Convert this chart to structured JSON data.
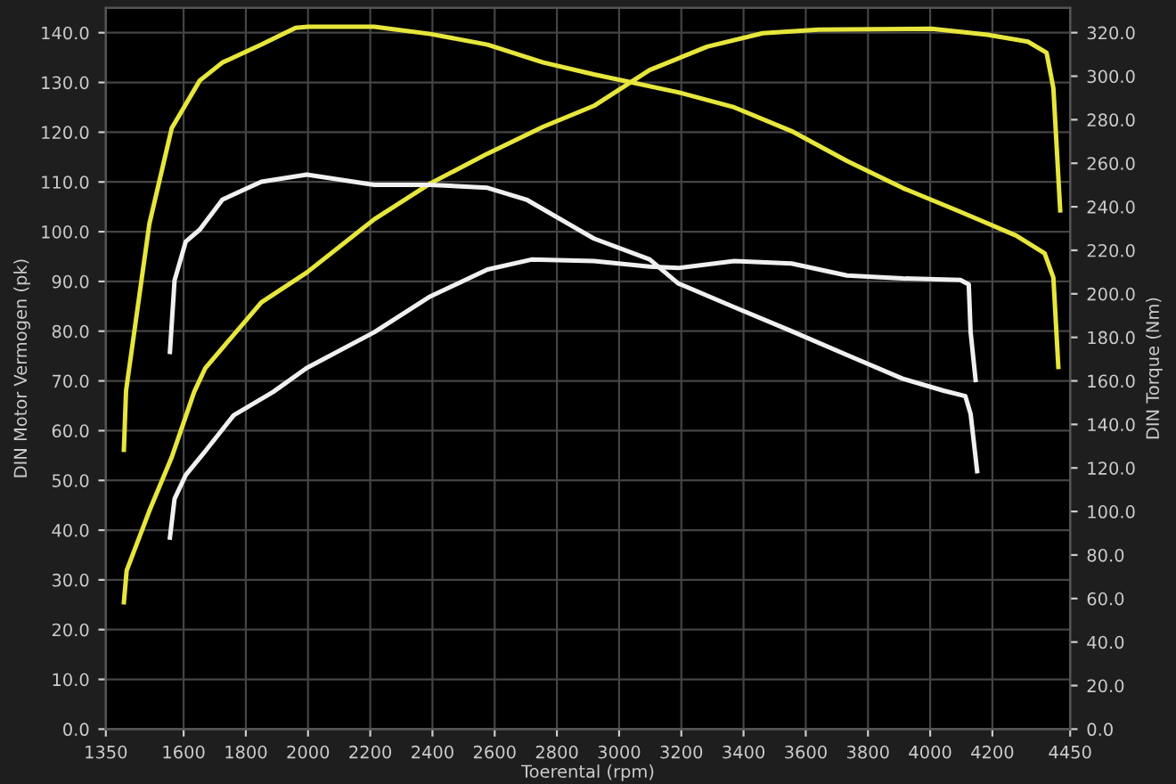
{
  "chart_data": {
    "type": "line",
    "xlabel": "Toerental (rpm)",
    "ylabel": "DIN Motor Vermogen (pk)",
    "y2label": "DIN Torque (Nm)",
    "xlim": [
      1350,
      4450
    ],
    "xticks": [
      1350,
      1600,
      1800,
      2000,
      2200,
      2400,
      2600,
      2800,
      3000,
      3200,
      3400,
      3600,
      3800,
      4000,
      4200,
      4450
    ],
    "ylim": [
      0,
      145
    ],
    "yticks": [
      {
        "value": 0,
        "label": "0.0"
      },
      {
        "value": 10,
        "label": "10.0"
      },
      {
        "value": 20,
        "label": "20.0"
      },
      {
        "value": 30,
        "label": "30.0"
      },
      {
        "value": 40,
        "label": "40.0"
      },
      {
        "value": 50,
        "label": "50.0"
      },
      {
        "value": 60,
        "label": "60.0"
      },
      {
        "value": 70,
        "label": "70.0"
      },
      {
        "value": 80,
        "label": "80.0"
      },
      {
        "value": 90,
        "label": "90.0"
      },
      {
        "value": 100,
        "label": "100.0"
      },
      {
        "value": 110,
        "label": "110.0"
      },
      {
        "value": 120,
        "label": "120.0"
      },
      {
        "value": 130,
        "label": "130.0"
      },
      {
        "value": 140,
        "label": "140.0"
      }
    ],
    "y2lim": [
      0,
      331.4
    ],
    "y2ticks": [
      {
        "value": 0,
        "label": "0.0"
      },
      {
        "value": 20,
        "label": "20.0"
      },
      {
        "value": 40,
        "label": "40.0"
      },
      {
        "value": 60,
        "label": "60.0"
      },
      {
        "value": 80,
        "label": "80.0"
      },
      {
        "value": 100,
        "label": "100.0"
      },
      {
        "value": 120,
        "label": "120.0"
      },
      {
        "value": 140,
        "label": "140.0"
      },
      {
        "value": 160,
        "label": "160.0"
      },
      {
        "value": 180,
        "label": "180.0"
      },
      {
        "value": 200,
        "label": "200.0"
      },
      {
        "value": 220,
        "label": "220.0"
      },
      {
        "value": 240,
        "label": "240.0"
      },
      {
        "value": 260,
        "label": "260.0"
      },
      {
        "value": 280,
        "label": "280.0"
      },
      {
        "value": 300,
        "label": "300.0"
      },
      {
        "value": 320,
        "label": "320.0"
      }
    ],
    "grid": true,
    "legend": false,
    "marker": "none",
    "line_style": "solid",
    "series": [
      {
        "color": "#e6e63c",
        "x": [
          1408,
          1417,
          1490,
          1562,
          1634,
          1670,
          1850,
          1996,
          2213,
          2393,
          2577,
          2756,
          2919,
          3098,
          3283,
          3462,
          3641,
          4005,
          4184,
          4314,
          4374,
          4396,
          4418
        ],
        "values": [
          25.5,
          31.9,
          43.9,
          54.7,
          67.8,
          72.6,
          85.8,
          91.8,
          102.5,
          109.7,
          115.7,
          121.1,
          125.3,
          132.5,
          137.2,
          139.9,
          140.6,
          140.8,
          139.6,
          138.2,
          136,
          128.9,
          104.3
        ]
      },
      {
        "color": "#e6e63c",
        "axis": "y2",
        "x": [
          1408,
          1415,
          1490,
          1562,
          1652,
          1725,
          1850,
          1960,
          2000,
          2213,
          2393,
          2577,
          2756,
          2919,
          3190,
          3370,
          3554,
          3733,
          3912,
          4097,
          4276,
          4368,
          4396,
          4412
        ],
        "values": [
          128.3,
          155.5,
          232.2,
          276.2,
          298,
          306.3,
          314.5,
          322.2,
          322.7,
          322.7,
          319.4,
          314.5,
          306.3,
          300.8,
          292.6,
          285.7,
          274.8,
          261,
          248.6,
          237.7,
          226.8,
          218.6,
          207.5,
          166.4
        ]
      },
      {
        "color": "#f0f0f0",
        "x": [
          1556,
          1571,
          1607,
          1670,
          1761,
          1888,
          1996,
          2213,
          2393,
          2577,
          2718,
          2919,
          3098,
          3190,
          3370,
          3554,
          3733,
          3912,
          4097,
          4124,
          4130,
          4146
        ],
        "values": [
          38.5,
          46.3,
          51.1,
          55.9,
          63.1,
          67.8,
          72.6,
          79.8,
          87,
          92.4,
          94.4,
          94.1,
          93,
          92.7,
          94.1,
          93.6,
          91.2,
          90.6,
          90.3,
          89.4,
          79.8,
          70.2
        ]
      },
      {
        "color": "#f0f0f0",
        "axis": "y2",
        "x": [
          1556,
          1571,
          1607,
          1652,
          1725,
          1850,
          1996,
          2213,
          2393,
          2577,
          2702,
          2919,
          3098,
          3190,
          3370,
          3554,
          3733,
          3912,
          4043,
          4113,
          4130,
          4151
        ],
        "values": [
          173.3,
          206.2,
          224,
          229.5,
          243.3,
          251.5,
          254.8,
          250.1,
          250.1,
          248.7,
          243.3,
          225.4,
          215.8,
          204.8,
          193.9,
          182.9,
          171.9,
          161,
          155.5,
          153,
          144.8,
          118.5
        ]
      }
    ]
  }
}
